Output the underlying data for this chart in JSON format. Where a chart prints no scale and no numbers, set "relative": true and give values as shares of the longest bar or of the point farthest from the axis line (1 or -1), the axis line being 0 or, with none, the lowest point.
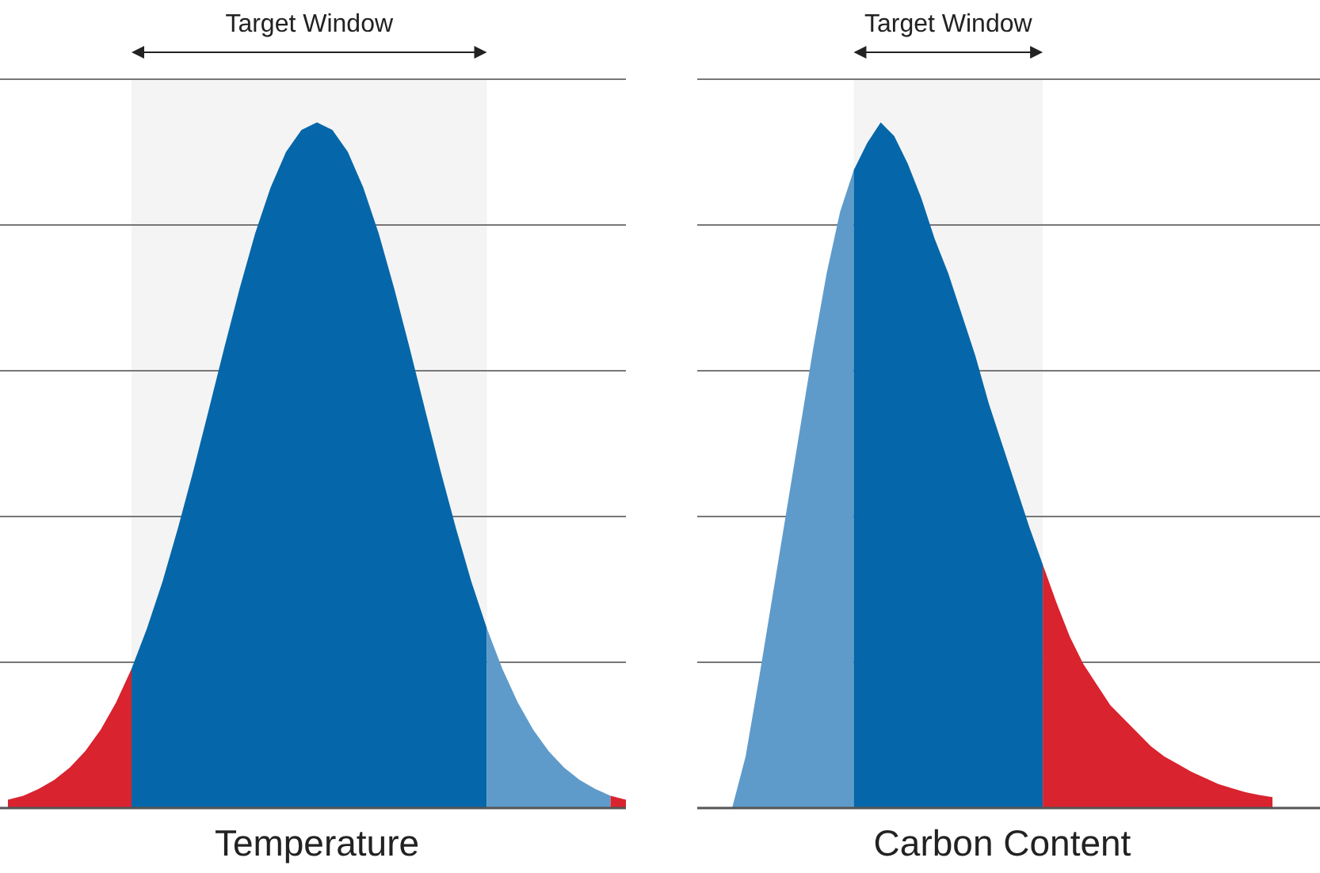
{
  "chart_data": [
    {
      "type": "area",
      "relative": true,
      "xlabel": "Temperature",
      "grid": "y",
      "annotations": [
        "Target Window"
      ],
      "categories": [
        null,
        null,
        null,
        null,
        null,
        null,
        null,
        null,
        null,
        null,
        null,
        null,
        null,
        null,
        null,
        null,
        null,
        null,
        null,
        null,
        null,
        null,
        null,
        null,
        null,
        null,
        null,
        null,
        null,
        null,
        null,
        null,
        null,
        null,
        null,
        null,
        null,
        null,
        null,
        null,
        null
      ],
      "series": [
        {
          "color": "#d9232e",
          "values": [
            0.012,
            0.018,
            0.028,
            0.041,
            0.059,
            0.083,
            0.114,
            0.154,
            0.203,
            null,
            null,
            null,
            null,
            null,
            null,
            null,
            null,
            null,
            null,
            null,
            null,
            null,
            null,
            null,
            null,
            null,
            null,
            null,
            null,
            null,
            null,
            null,
            null,
            null,
            null,
            null,
            null,
            null,
            null,
            null,
            null
          ]
        },
        {
          "color": "#0567a9",
          "values": [
            null,
            null,
            null,
            null,
            null,
            null,
            null,
            null,
            0.203,
            0.262,
            0.33,
            0.408,
            0.492,
            0.581,
            0.671,
            0.758,
            0.838,
            0.905,
            0.957,
            0.989,
            1,
            0.989,
            0.957,
            0.905,
            0.838,
            0.758,
            0.671,
            0.581,
            0.492,
            0.408,
            0.33,
            0.262,
            null,
            null,
            null,
            null,
            null,
            null,
            null,
            null,
            null
          ]
        },
        {
          "color": "#5f9bca",
          "values": [
            null,
            null,
            null,
            null,
            null,
            null,
            null,
            null,
            null,
            null,
            null,
            null,
            null,
            null,
            null,
            null,
            null,
            null,
            null,
            null,
            null,
            null,
            null,
            null,
            null,
            null,
            null,
            null,
            null,
            null,
            null,
            0.262,
            0.203,
            0.154,
            0.114,
            0.083,
            0.059,
            0.041,
            0.028,
            0.018,
            null
          ]
        },
        {
          "color": "#d9232e",
          "values": [
            null,
            null,
            null,
            null,
            null,
            null,
            null,
            null,
            null,
            null,
            null,
            null,
            null,
            null,
            null,
            null,
            null,
            null,
            null,
            null,
            null,
            null,
            null,
            null,
            null,
            null,
            null,
            null,
            null,
            null,
            null,
            null,
            null,
            null,
            null,
            null,
            null,
            null,
            null,
            0.018,
            0.012
          ]
        }
      ]
    },
    {
      "type": "area",
      "relative": true,
      "xlabel": "Carbon Content",
      "grid": "y",
      "annotations": [
        "Target Window"
      ],
      "categories": [
        null,
        null,
        null,
        null,
        null,
        null,
        null,
        null,
        null,
        null,
        null,
        null,
        null,
        null,
        null,
        null,
        null,
        null,
        null,
        null,
        null,
        null,
        null,
        null,
        null,
        null,
        null,
        null,
        null,
        null,
        null,
        null,
        null,
        null,
        null,
        null,
        null,
        null,
        null,
        null,
        null
      ],
      "series": [
        {
          "color": "#5f9bca",
          "values": [
            0,
            0.075,
            0.19,
            0.31,
            0.43,
            0.55,
            0.67,
            0.78,
            0.87,
            0.93,
            null,
            null,
            null,
            null,
            null,
            null,
            null,
            null,
            null,
            null,
            null,
            null,
            null,
            null,
            null,
            null,
            null,
            null,
            null,
            null,
            null,
            null,
            null,
            null,
            null,
            null,
            null,
            null,
            null,
            null,
            null
          ]
        },
        {
          "color": "#0567a9",
          "values": [
            null,
            null,
            null,
            null,
            null,
            null,
            null,
            null,
            null,
            0.93,
            0.97,
            1,
            0.98,
            0.94,
            0.89,
            0.83,
            0.78,
            0.72,
            0.66,
            0.59,
            0.53,
            0.47,
            0.41,
            0.355,
            null,
            null,
            null,
            null,
            null,
            null,
            null,
            null,
            null,
            null,
            null,
            null,
            null,
            null,
            null,
            null,
            null
          ]
        },
        {
          "color": "#d9232e",
          "values": [
            null,
            null,
            null,
            null,
            null,
            null,
            null,
            null,
            null,
            null,
            null,
            null,
            null,
            null,
            null,
            null,
            null,
            null,
            null,
            null,
            null,
            null,
            null,
            0.355,
            0.3,
            0.25,
            0.21,
            0.18,
            0.15,
            0.13,
            0.11,
            0.09,
            0.075,
            0.064,
            0.053,
            0.044,
            0.035,
            0.029,
            0.023,
            0.019,
            0.016
          ]
        }
      ]
    }
  ]
}
